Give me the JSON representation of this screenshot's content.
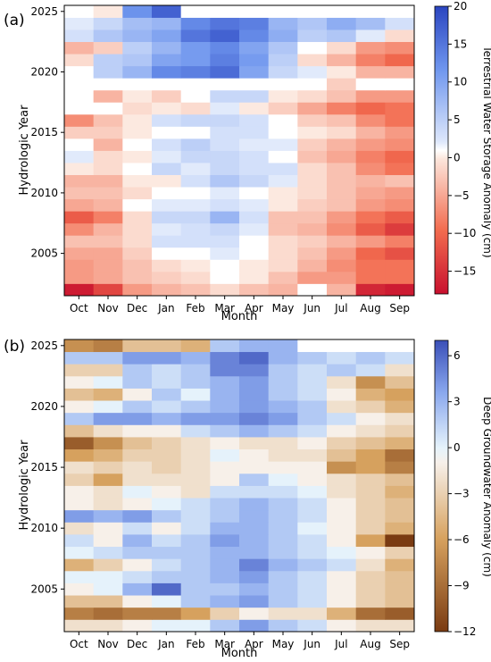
{
  "chart_data": [
    {
      "type": "heatmap",
      "panel_label": "(a)",
      "xlabel": "Month",
      "ylabel": "Hydrologic Year",
      "colorbar_label": "Terrestrial Water Storage Anomaly (cm)",
      "colormap": "coolwarm_r (red = negative, blue = positive)",
      "x_categories": [
        "Oct",
        "Nov",
        "Dec",
        "Jan",
        "Feb",
        "Mar",
        "Apr",
        "May",
        "Jun",
        "Jul",
        "Aug",
        "Sep"
      ],
      "y_ticks": [
        2005,
        2010,
        2015,
        2020,
        2025
      ],
      "colorbar_ticks": [
        -15,
        -10,
        -5,
        0,
        5,
        10,
        15,
        20
      ],
      "vmin": -18,
      "vmax": 20,
      "missing_cells": "white (no data)",
      "rows": [
        {
          "year": 2002,
          "values": [
            -17,
            -13,
            -6,
            -4,
            -3,
            -1,
            -3,
            -4,
            null,
            -4,
            -16,
            -17
          ]
        },
        {
          "year": 2003,
          "values": [
            -6,
            -5,
            -3,
            -2,
            -1,
            1,
            0,
            -3,
            -6,
            -6,
            -9,
            -9
          ]
        },
        {
          "year": 2004,
          "values": [
            -6,
            -5,
            -3,
            -1,
            0,
            1,
            0,
            -1,
            -4,
            -7,
            -9,
            -9
          ]
        },
        {
          "year": 2005,
          "values": [
            -5,
            -5,
            -2,
            1,
            1,
            2,
            1,
            -1,
            -3,
            -6,
            -10,
            -12
          ]
        },
        {
          "year": 2006,
          "values": [
            -3,
            -3,
            -1,
            3,
            3,
            3,
            1,
            -1,
            -2,
            -4,
            -6,
            -8
          ]
        },
        {
          "year": 2007,
          "values": [
            -7,
            -4,
            -1,
            2,
            3,
            4,
            2,
            -3,
            -4,
            -7,
            -11,
            -14
          ]
        },
        {
          "year": 2008,
          "values": [
            -11,
            -8,
            -1,
            4,
            4,
            8,
            3,
            -3,
            -3,
            -6,
            -9,
            -11
          ]
        },
        {
          "year": 2009,
          "values": [
            -5,
            -4,
            1,
            2,
            2,
            3,
            2,
            0,
            -2,
            -3,
            -6,
            -7
          ]
        },
        {
          "year": 2010,
          "values": [
            -3,
            -3,
            -1,
            1,
            1,
            2,
            1,
            0,
            -1,
            -3,
            -5,
            -6
          ]
        },
        {
          "year": 2011,
          "values": [
            -4,
            -4,
            0,
            0,
            3,
            6,
            4,
            2,
            -1,
            -3,
            -4,
            -3
          ]
        },
        {
          "year": 2012,
          "values": [
            0,
            -1,
            1,
            4,
            2,
            4,
            3,
            3,
            -1,
            -3,
            -7,
            -9
          ]
        },
        {
          "year": 2013,
          "values": [
            2,
            -1,
            0,
            2,
            4,
            4,
            3,
            1,
            -3,
            -5,
            -8,
            -10
          ]
        },
        {
          "year": 2014,
          "values": [
            null,
            -4,
            1,
            3,
            5,
            3,
            2,
            2,
            -2,
            -4,
            -6,
            -7
          ]
        },
        {
          "year": 2015,
          "values": [
            -2,
            -2,
            0,
            1,
            1,
            3,
            3,
            1,
            0,
            -1,
            -4,
            -6
          ]
        },
        {
          "year": 2016,
          "values": [
            -7,
            -3,
            0,
            3,
            4,
            4,
            3,
            1,
            -2,
            -3,
            -7,
            -9
          ]
        },
        {
          "year": 2017,
          "values": [
            null,
            null,
            -1,
            0,
            -1,
            2,
            0,
            -2,
            -5,
            -8,
            -10,
            -9
          ]
        },
        {
          "year": 2018,
          "values": [
            null,
            -4,
            0,
            -2,
            null,
            4,
            4,
            0,
            -1,
            -3,
            -6,
            -6
          ]
        },
        {
          "year": 2019,
          "values": [
            null,
            null,
            null,
            null,
            null,
            null,
            null,
            null,
            1,
            -2,
            null,
            null
          ]
        },
        {
          "year": 2020,
          "values": [
            1,
            5,
            8,
            13,
            14,
            16,
            10,
            4,
            2,
            0,
            -4,
            -4
          ]
        },
        {
          "year": 2021,
          "values": [
            -1,
            5,
            6,
            10,
            11,
            14,
            11,
            5,
            -1,
            -4,
            -8,
            -10
          ]
        },
        {
          "year": 2022,
          "values": [
            -4,
            -2,
            5,
            8,
            11,
            13,
            10,
            6,
            1,
            -1,
            -6,
            -7
          ]
        },
        {
          "year": 2023,
          "values": [
            3,
            6,
            8,
            10,
            15,
            17,
            13,
            9,
            5,
            6,
            2,
            -1
          ]
        },
        {
          "year": 2024,
          "values": [
            2,
            4,
            7,
            8,
            13,
            15,
            14,
            8,
            6,
            9,
            7,
            3
          ]
        },
        {
          "year": 2025,
          "values": [
            1,
            0,
            12,
            17,
            null,
            null,
            null,
            null,
            null,
            null,
            null,
            null
          ]
        }
      ]
    },
    {
      "type": "heatmap",
      "panel_label": "(b)",
      "xlabel": "Month",
      "ylabel": "Hydrologic Year",
      "colorbar_label": "Deep Groundwater Anomaly (cm)",
      "colormap": "diverging: dark brown (negative) to white to blue (positive)",
      "x_categories": [
        "Oct",
        "Nov",
        "Dec",
        "Jan",
        "Feb",
        "Mar",
        "Apr",
        "May",
        "Jun",
        "Jul",
        "Aug",
        "Sep"
      ],
      "y_ticks": [
        2005,
        2010,
        2015,
        2020,
        2025
      ],
      "colorbar_ticks": [
        -12,
        -9,
        -6,
        -3,
        0,
        3,
        6
      ],
      "vmin": -12,
      "vmax": 7,
      "missing_cells": "white (no data)",
      "rows": [
        {
          "year": 2002,
          "values": [
            -2,
            -2,
            -1,
            0,
            0,
            2,
            4,
            2,
            1,
            -1,
            -2,
            -2
          ]
        },
        {
          "year": 2003,
          "values": [
            -8,
            -9,
            -8,
            -8,
            -6,
            -3,
            -1,
            -2,
            -2,
            -5,
            -9,
            -10
          ]
        },
        {
          "year": 2004,
          "values": [
            -4,
            -4,
            -1,
            0,
            2,
            3,
            4,
            2,
            1,
            -1,
            -3,
            -4
          ]
        },
        {
          "year": 2005,
          "values": [
            -1,
            0,
            3,
            6,
            2,
            2,
            3,
            2,
            1,
            -1,
            -3,
            -4
          ]
        },
        {
          "year": 2006,
          "values": [
            0,
            0,
            1,
            2,
            2,
            3,
            4,
            2,
            1,
            -1,
            -3,
            -4
          ]
        },
        {
          "year": 2007,
          "values": [
            -5,
            -3,
            -1,
            1,
            2,
            3,
            5,
            3,
            2,
            1,
            -2,
            -5
          ]
        },
        {
          "year": 2008,
          "values": [
            0,
            1,
            2,
            2,
            2,
            3,
            3,
            2,
            1,
            0,
            -1,
            -3
          ]
        },
        {
          "year": 2009,
          "values": [
            1,
            -1,
            3,
            1,
            2,
            4,
            3,
            2,
            1,
            -1,
            -6,
            -12
          ]
        },
        {
          "year": 2010,
          "values": [
            -2,
            -1,
            1,
            -1,
            1,
            3,
            3,
            2,
            0,
            -1,
            -3,
            -5
          ]
        },
        {
          "year": 2011,
          "values": [
            4,
            3,
            4,
            2,
            1,
            2,
            3,
            2,
            1,
            -1,
            -3,
            -4
          ]
        },
        {
          "year": 2012,
          "values": [
            -1,
            -2,
            -1,
            0,
            1,
            2,
            3,
            2,
            1,
            -1,
            -3,
            -4
          ]
        },
        {
          "year": 2013,
          "values": [
            -1,
            -2,
            0,
            -1,
            -2,
            1,
            1,
            1,
            0,
            -2,
            -3,
            -5
          ]
        },
        {
          "year": 2014,
          "values": [
            -3,
            -6,
            -2,
            -2,
            -2,
            -1,
            2,
            0,
            -1,
            -2,
            -3,
            -4
          ]
        },
        {
          "year": 2015,
          "values": [
            -2,
            -3,
            -2,
            -3,
            -2,
            -1,
            -1,
            -1,
            -1,
            -7,
            -6,
            -8
          ]
        },
        {
          "year": 2016,
          "values": [
            -6,
            -5,
            -3,
            -3,
            -2,
            0,
            -1,
            -2,
            -2,
            -4,
            -6,
            -9
          ]
        },
        {
          "year": 2017,
          "values": [
            -10,
            -7,
            -4,
            -3,
            -2,
            -1,
            -2,
            -2,
            -1,
            -3,
            -4,
            -5
          ]
        },
        {
          "year": 2018,
          "values": [
            -4,
            -2,
            -1,
            -1,
            1,
            2,
            3,
            2,
            1,
            -1,
            -2,
            -3
          ]
        },
        {
          "year": 2019,
          "values": [
            2,
            4,
            4,
            3,
            4,
            4,
            5,
            4,
            2,
            1,
            -1,
            -2
          ]
        },
        {
          "year": 2020,
          "values": [
            -1,
            0,
            2,
            1,
            2,
            3,
            4,
            3,
            2,
            -2,
            -3,
            -5
          ]
        },
        {
          "year": 2021,
          "values": [
            -4,
            -5,
            -1,
            2,
            0,
            3,
            4,
            2,
            1,
            -1,
            -5,
            -6
          ]
        },
        {
          "year": 2022,
          "values": [
            -1,
            0,
            2,
            1,
            2,
            3,
            4,
            2,
            1,
            -2,
            -7,
            -4
          ]
        },
        {
          "year": 2023,
          "values": [
            -3,
            -3,
            2,
            1,
            2,
            5,
            5,
            2,
            1,
            2,
            1,
            -2
          ]
        },
        {
          "year": 2024,
          "values": [
            2,
            2,
            4,
            4,
            3,
            5,
            6,
            3,
            2,
            1,
            2,
            1
          ]
        },
        {
          "year": 2025,
          "values": [
            -7,
            -8,
            -4,
            -4,
            -5,
            2,
            3,
            3,
            null,
            null,
            null,
            null
          ]
        }
      ]
    }
  ]
}
